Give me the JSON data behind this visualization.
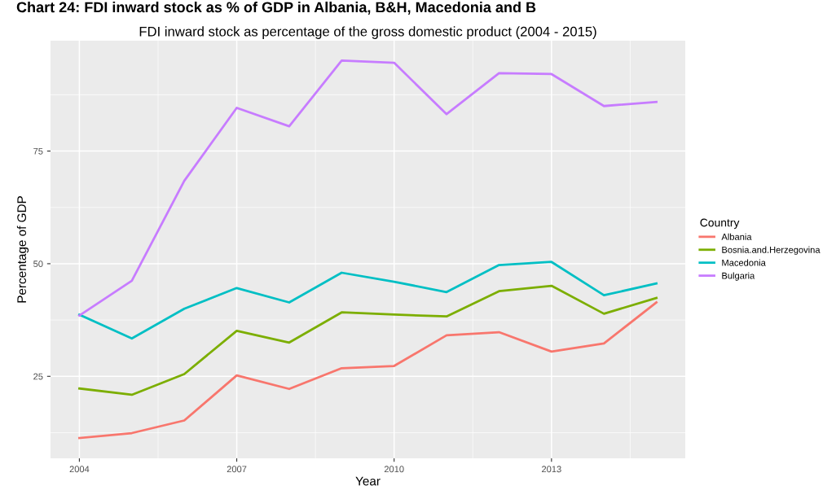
{
  "chart_data": {
    "type": "line",
    "title": "FDI inward stock as percentage of the gross domestic product (2004 - 2015)",
    "xlabel": "Year",
    "ylabel": "Percentage of GDP",
    "legend_title": "Country",
    "legend": "right",
    "grid": true,
    "annotations": [
      "Chart 24: FDI inward stock as % of GDP in Albania, B&H, Macedonia and B"
    ],
    "x": [
      2004,
      2005,
      2006,
      2007,
      2008,
      2009,
      2010,
      2011,
      2012,
      2013,
      2014,
      2015
    ],
    "xlim": [
      2003.45,
      2015.55
    ],
    "xticks": [
      2004,
      2007,
      2010,
      2013
    ],
    "ylim": [
      6.8,
      99.5
    ],
    "yticks": [
      25,
      50,
      75
    ],
    "series": [
      {
        "name": "Albania",
        "color": "#f8766d",
        "values": [
          11.3,
          12.4,
          15.2,
          25.2,
          22.2,
          26.8,
          27.3,
          34.1,
          34.8,
          30.5,
          32.3,
          41.4
        ]
      },
      {
        "name": "Bosnia.and.Herzegovina",
        "color": "#7cae00",
        "values": [
          22.3,
          20.9,
          25.5,
          35.1,
          32.5,
          39.2,
          38.7,
          38.3,
          43.9,
          45.1,
          38.9,
          42.4
        ]
      },
      {
        "name": "Macedonia",
        "color": "#00bfc4",
        "values": [
          38.7,
          33.4,
          40.0,
          44.6,
          41.4,
          48.0,
          46.0,
          43.7,
          49.7,
          50.4,
          43.0,
          45.6
        ]
      },
      {
        "name": "Bulgaria",
        "color": "#c77cff",
        "values": [
          38.5,
          46.2,
          68.4,
          84.6,
          80.5,
          95.1,
          94.6,
          83.2,
          92.3,
          92.1,
          85.0,
          85.9
        ]
      }
    ]
  }
}
